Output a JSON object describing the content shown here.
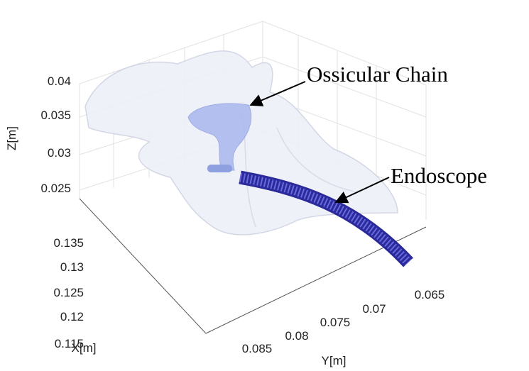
{
  "axes": {
    "z": {
      "label": "Z[m]",
      "ticks": [
        "0.04",
        "0.035",
        "0.03",
        "0.025"
      ]
    },
    "x": {
      "label": "X[m]",
      "ticks": [
        "0.135",
        "0.13",
        "0.125",
        "0.12",
        "0.115"
      ]
    },
    "y": {
      "label": "Y[m]",
      "ticks": [
        "0.085",
        "0.08",
        "0.075",
        "0.07",
        "0.065"
      ]
    }
  },
  "annotations": [
    "Ossicular Chain",
    "Endoscope"
  ]
}
